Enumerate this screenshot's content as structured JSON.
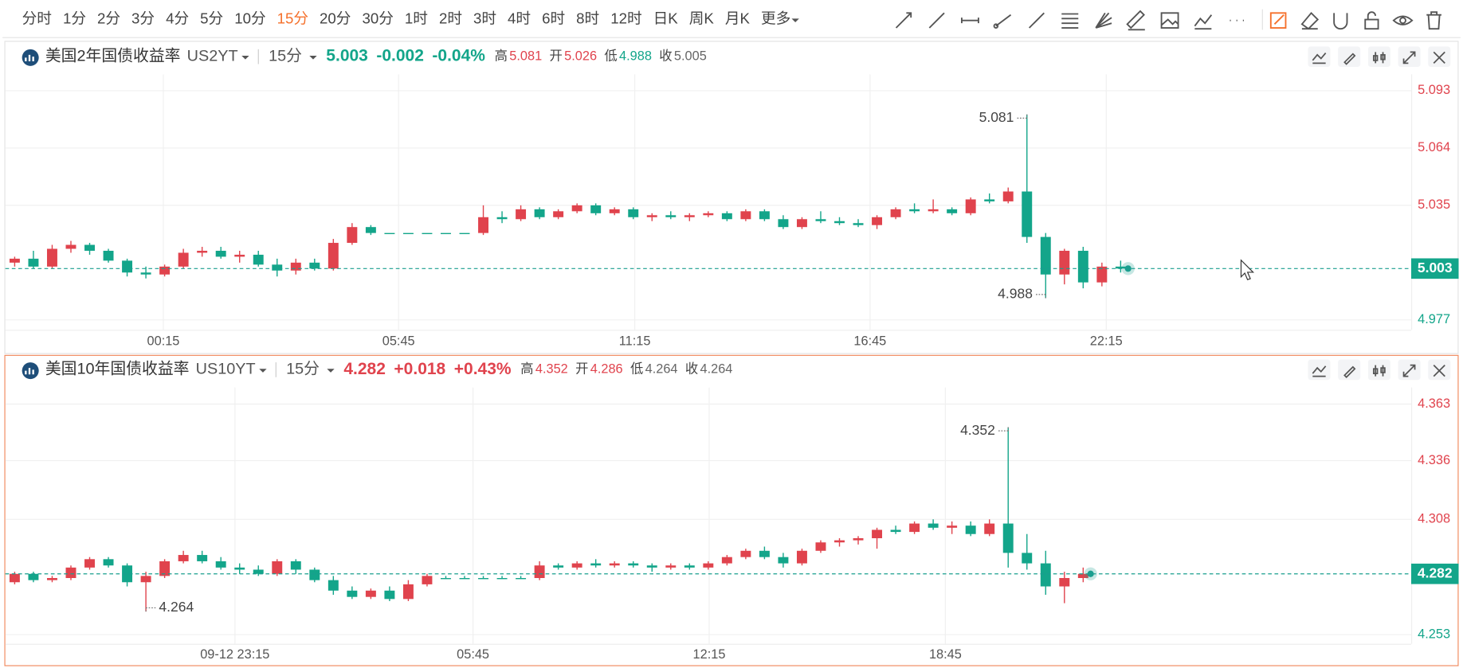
{
  "toolbar": {
    "periods": [
      "分时",
      "1分",
      "2分",
      "3分",
      "4分",
      "5分",
      "10分",
      "15分",
      "20分",
      "30分",
      "1时",
      "2时",
      "3时",
      "4时",
      "6时",
      "8时",
      "12时",
      "日K",
      "周K",
      "月K"
    ],
    "active": 7,
    "more": "更多"
  },
  "chart_data": [
    {
      "type": "candlestick",
      "name": "美国2年国债收益率",
      "symbol": "US2YT",
      "period": "15分",
      "price": 5.003,
      "change": "-0.002",
      "change_pct": "-0.04%",
      "stats": [
        {
          "label": "高",
          "value": 5.081
        },
        {
          "label": "开",
          "value": 5.026
        },
        {
          "label": "低",
          "value": 4.988
        },
        {
          "label": "收",
          "value": 5.005
        }
      ],
      "last": 5.003,
      "ylim": [
        4.972,
        5.098
      ],
      "yticks": [
        5.093,
        5.064,
        5.035,
        4.977
      ],
      "xlim": [
        0,
        75
      ],
      "xticks": [
        {
          "value": 8.43,
          "label": "00:15"
        },
        {
          "value": 20.98,
          "label": "05:45"
        },
        {
          "value": 33.58,
          "label": "11:15"
        },
        {
          "value": 46.13,
          "label": "16:45"
        },
        {
          "value": 58.73,
          "label": "22:15"
        }
      ],
      "up_color": "#e0434d",
      "down_color": "#13a58a",
      "last_color": "#1a9e8f",
      "border_color": "#e3e3e3",
      "grid": true,
      "candles": [
        [
          5.006,
          5.009,
          5.004,
          5.008
        ],
        [
          5.008,
          5.012,
          5.003,
          5.004
        ],
        [
          5.004,
          5.015,
          5.003,
          5.013
        ],
        [
          5.013,
          5.017,
          5.011,
          5.015
        ],
        [
          5.015,
          5.016,
          5.01,
          5.012
        ],
        [
          5.012,
          5.013,
          5.006,
          5.007
        ],
        [
          5.007,
          5.008,
          4.999,
          5.001
        ],
        [
          5.001,
          5.004,
          4.998,
          5.0
        ],
        [
          5.0,
          5.005,
          4.999,
          5.004
        ],
        [
          5.004,
          5.013,
          5.003,
          5.011
        ],
        [
          5.011,
          5.014,
          5.009,
          5.012
        ],
        [
          5.012,
          5.014,
          5.008,
          5.009
        ],
        [
          5.009,
          5.012,
          5.006,
          5.01
        ],
        [
          5.01,
          5.012,
          5.004,
          5.005
        ],
        [
          5.005,
          5.008,
          4.999,
          5.002
        ],
        [
          5.002,
          5.008,
          5.0,
          5.006
        ],
        [
          5.006,
          5.008,
          5.002,
          5.003
        ],
        [
          5.003,
          5.018,
          5.002,
          5.016
        ],
        [
          5.016,
          5.026,
          5.015,
          5.024
        ],
        [
          5.024,
          5.025,
          5.02,
          5.021
        ],
        [
          5.021,
          5.021,
          5.021,
          5.021
        ],
        [
          5.021,
          5.021,
          5.021,
          5.021
        ],
        [
          5.021,
          5.021,
          5.021,
          5.021
        ],
        [
          5.021,
          5.021,
          5.021,
          5.021
        ],
        [
          5.021,
          5.021,
          5.021,
          5.021
        ],
        [
          5.021,
          5.035,
          5.02,
          5.029
        ],
        [
          5.029,
          5.032,
          5.026,
          5.028
        ],
        [
          5.028,
          5.035,
          5.027,
          5.033
        ],
        [
          5.033,
          5.034,
          5.028,
          5.029
        ],
        [
          5.029,
          5.033,
          5.028,
          5.032
        ],
        [
          5.032,
          5.036,
          5.031,
          5.035
        ],
        [
          5.035,
          5.036,
          5.03,
          5.031
        ],
        [
          5.031,
          5.034,
          5.03,
          5.033
        ],
        [
          5.033,
          5.034,
          5.028,
          5.029
        ],
        [
          5.029,
          5.031,
          5.027,
          5.03
        ],
        [
          5.03,
          5.032,
          5.028,
          5.029
        ],
        [
          5.029,
          5.031,
          5.027,
          5.03
        ],
        [
          5.03,
          5.032,
          5.029,
          5.031
        ],
        [
          5.031,
          5.032,
          5.027,
          5.028
        ],
        [
          5.028,
          5.033,
          5.027,
          5.032
        ],
        [
          5.032,
          5.033,
          5.027,
          5.028
        ],
        [
          5.028,
          5.03,
          5.023,
          5.024
        ],
        [
          5.024,
          5.029,
          5.023,
          5.028
        ],
        [
          5.028,
          5.032,
          5.026,
          5.027
        ],
        [
          5.027,
          5.029,
          5.025,
          5.026
        ],
        [
          5.026,
          5.028,
          5.024,
          5.025
        ],
        [
          5.025,
          5.03,
          5.023,
          5.029
        ],
        [
          5.029,
          5.034,
          5.028,
          5.033
        ],
        [
          5.033,
          5.036,
          5.031,
          5.032
        ],
        [
          5.032,
          5.038,
          5.031,
          5.033
        ],
        [
          5.033,
          5.034,
          5.03,
          5.031
        ],
        [
          5.031,
          5.039,
          5.03,
          5.038
        ],
        [
          5.038,
          5.041,
          5.036,
          5.037
        ],
        [
          5.037,
          5.044,
          5.036,
          5.042
        ],
        [
          5.042,
          5.081,
          5.016,
          5.019
        ],
        [
          5.019,
          5.021,
          4.988,
          5.0
        ],
        [
          5.0,
          5.013,
          4.995,
          5.012
        ],
        [
          5.012,
          5.014,
          4.993,
          4.996
        ],
        [
          4.996,
          5.006,
          4.994,
          5.004
        ],
        [
          5.004,
          5.007,
          5.001,
          5.003
        ]
      ]
    },
    {
      "type": "candlestick",
      "name": "美国10年国债收益率",
      "symbol": "US10YT",
      "period": "15分",
      "price": 4.282,
      "change": "+0.018",
      "change_pct": "+0.43%",
      "stats": [
        {
          "label": "高",
          "value": 4.352
        },
        {
          "label": "开",
          "value": 4.286
        },
        {
          "label": "低",
          "value": 4.264
        },
        {
          "label": "收",
          "value": 4.264
        }
      ],
      "last": 4.282,
      "ylim": [
        4.2486,
        4.3674
      ],
      "yticks": [
        4.363,
        4.336,
        4.308,
        4.253
      ],
      "xlim": [
        0,
        75
      ],
      "xticks": [
        {
          "value": 12.25,
          "label": "09-12 23:15"
        },
        {
          "value": 24.95,
          "label": "05:45"
        },
        {
          "value": 37.55,
          "label": "12:15"
        },
        {
          "value": 50.15,
          "label": "18:45"
        }
      ],
      "up_color": "#e0434d",
      "down_color": "#13a58a",
      "last_color": "#1a9e8f",
      "border_color": "#f08a5d",
      "grid": true,
      "candles": [
        [
          4.278,
          4.283,
          4.277,
          4.282
        ],
        [
          4.282,
          4.283,
          4.278,
          4.279
        ],
        [
          4.279,
          4.281,
          4.278,
          4.28
        ],
        [
          4.28,
          4.286,
          4.279,
          4.285
        ],
        [
          4.285,
          4.29,
          4.284,
          4.289
        ],
        [
          4.289,
          4.29,
          4.285,
          4.286
        ],
        [
          4.286,
          4.287,
          4.276,
          4.278
        ],
        [
          4.278,
          4.283,
          4.264,
          4.281
        ],
        [
          4.281,
          4.289,
          4.28,
          4.288
        ],
        [
          4.288,
          4.293,
          4.287,
          4.291
        ],
        [
          4.291,
          4.293,
          4.287,
          4.288
        ],
        [
          4.288,
          4.29,
          4.284,
          4.285
        ],
        [
          4.285,
          4.287,
          4.282,
          4.284
        ],
        [
          4.284,
          4.286,
          4.281,
          4.282
        ],
        [
          4.282,
          4.289,
          4.281,
          4.288
        ],
        [
          4.288,
          4.289,
          4.282,
          4.284
        ],
        [
          4.284,
          4.285,
          4.278,
          4.279
        ],
        [
          4.279,
          4.281,
          4.272,
          4.274
        ],
        [
          4.274,
          4.276,
          4.27,
          4.271
        ],
        [
          4.271,
          4.275,
          4.27,
          4.274
        ],
        [
          4.274,
          4.276,
          4.269,
          4.27
        ],
        [
          4.27,
          4.279,
          4.269,
          4.277
        ],
        [
          4.277,
          4.282,
          4.276,
          4.281
        ],
        [
          4.28,
          4.281,
          4.28,
          4.28
        ],
        [
          4.28,
          4.281,
          4.28,
          4.28
        ],
        [
          4.28,
          4.281,
          4.28,
          4.28
        ],
        [
          4.28,
          4.281,
          4.28,
          4.28
        ],
        [
          4.28,
          4.281,
          4.28,
          4.28
        ],
        [
          4.28,
          4.288,
          4.279,
          4.286
        ],
        [
          4.286,
          4.287,
          4.284,
          4.285
        ],
        [
          4.285,
          4.288,
          4.284,
          4.287
        ],
        [
          4.287,
          4.289,
          4.285,
          4.286
        ],
        [
          4.286,
          4.288,
          4.285,
          4.287
        ],
        [
          4.287,
          4.288,
          4.285,
          4.286
        ],
        [
          4.286,
          4.287,
          4.283,
          4.285
        ],
        [
          4.285,
          4.287,
          4.284,
          4.286
        ],
        [
          4.286,
          4.287,
          4.284,
          4.285
        ],
        [
          4.285,
          4.288,
          4.284,
          4.287
        ],
        [
          4.287,
          4.291,
          4.286,
          4.29
        ],
        [
          4.29,
          4.294,
          4.289,
          4.293
        ],
        [
          4.293,
          4.295,
          4.289,
          4.29
        ],
        [
          4.29,
          4.292,
          4.285,
          4.287
        ],
        [
          4.287,
          4.294,
          4.286,
          4.293
        ],
        [
          4.293,
          4.298,
          4.292,
          4.297
        ],
        [
          4.297,
          4.299,
          4.295,
          4.298
        ],
        [
          4.298,
          4.3,
          4.296,
          4.299
        ],
        [
          4.299,
          4.304,
          4.294,
          4.303
        ],
        [
          4.303,
          4.305,
          4.301,
          4.302
        ],
        [
          4.302,
          4.307,
          4.301,
          4.306
        ],
        [
          4.306,
          4.308,
          4.303,
          4.304
        ],
        [
          4.304,
          4.307,
          4.301,
          4.305
        ],
        [
          4.305,
          4.307,
          4.3,
          4.301
        ],
        [
          4.301,
          4.308,
          4.3,
          4.306
        ],
        [
          4.306,
          4.352,
          4.285,
          4.292
        ],
        [
          4.292,
          4.301,
          4.284,
          4.287
        ],
        [
          4.287,
          4.293,
          4.272,
          4.276
        ],
        [
          4.276,
          4.283,
          4.268,
          4.28
        ],
        [
          4.28,
          4.285,
          4.278,
          4.282
        ]
      ]
    }
  ]
}
